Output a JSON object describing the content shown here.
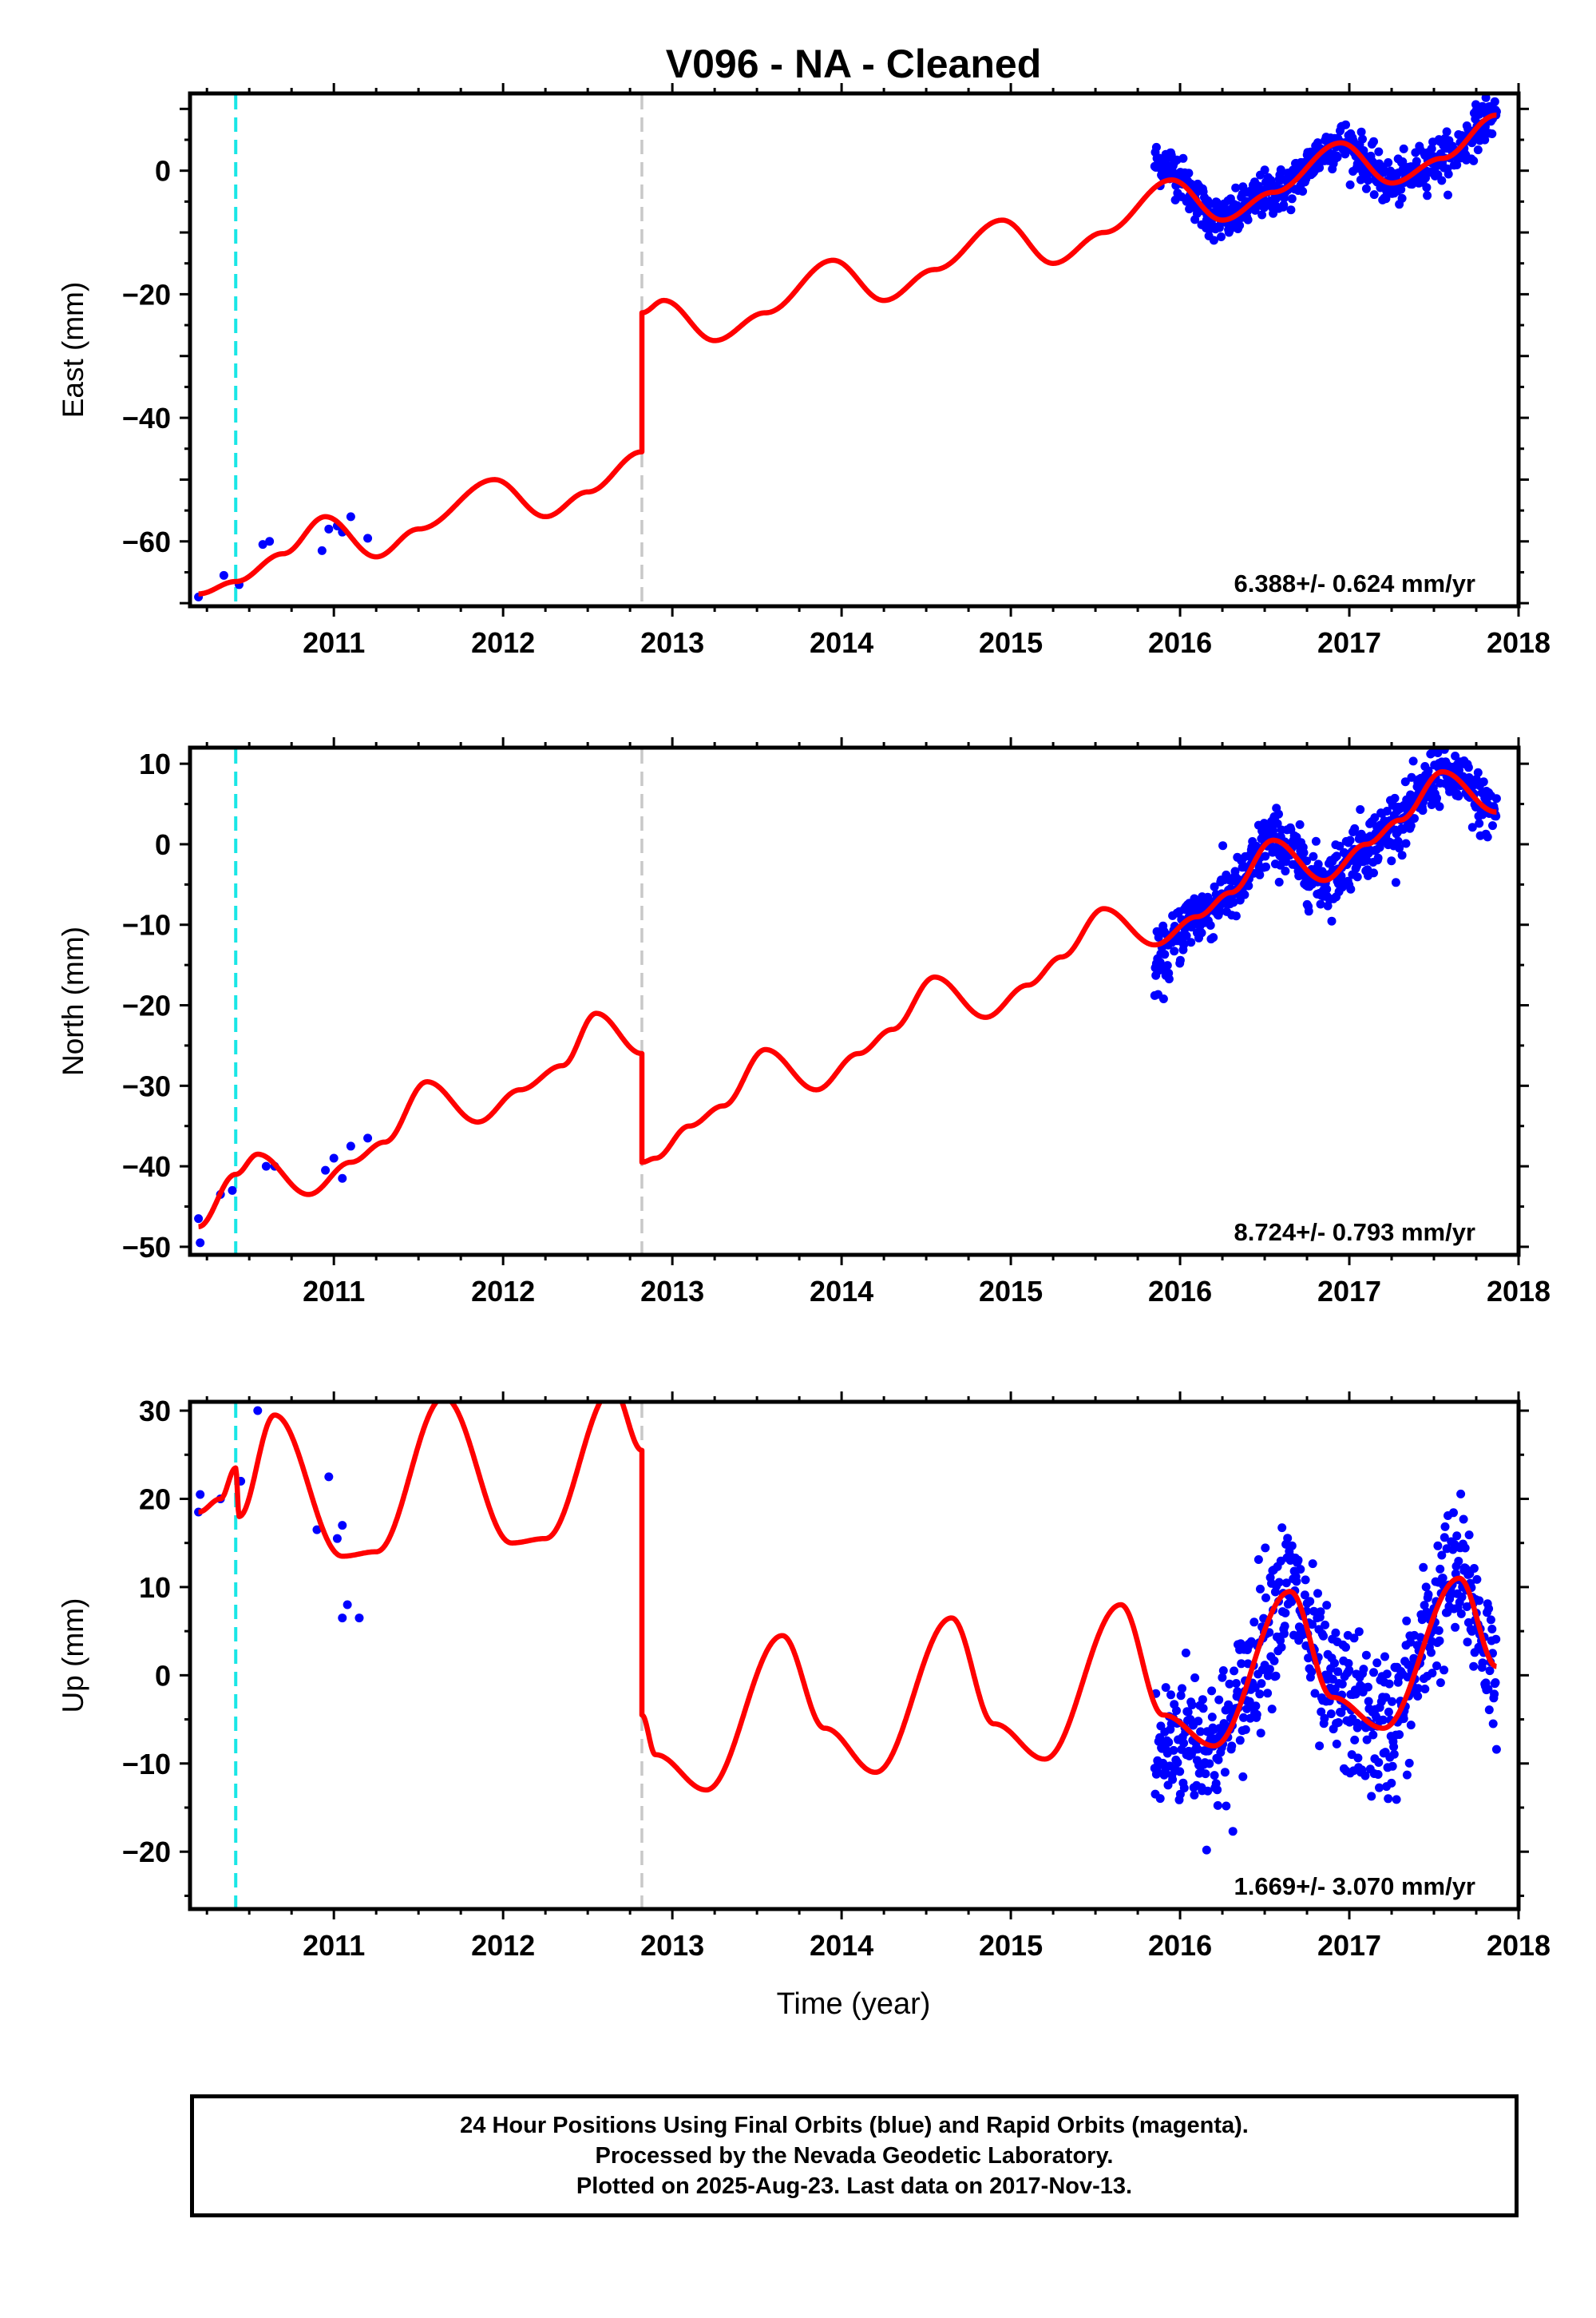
{
  "chart_data": {
    "type": "scatter",
    "title": "V096  - NA - Cleaned",
    "xlabel": "Time (year)",
    "xlim": [
      2010.15,
      2018.0
    ],
    "xticks": [
      2011,
      2012,
      2013,
      2014,
      2015,
      2016,
      2017,
      2018
    ],
    "vlines": [
      {
        "x": 2010.42,
        "style": "dashed",
        "color": "#19e6e6"
      },
      {
        "x": 2012.82,
        "style": "dashed",
        "color": "#c8c8c8"
      }
    ],
    "colors": {
      "data": "#0000ff",
      "model": "#ff0000"
    },
    "panels": [
      {
        "id": "east",
        "ylabel": "East (mm)",
        "ylim": [
          -70.5,
          12.5
        ],
        "yticks": [
          0,
          -20,
          -40,
          -60
        ],
        "rate_label": "6.388+/- 0.624 mm/yr",
        "model": {
          "pre_step_knots": [
            [
              2010.2,
              -68.5
            ],
            [
              2010.42,
              -66.5
            ],
            [
              2010.7,
              -62.0
            ],
            [
              2010.95,
              -56.0
            ],
            [
              2011.25,
              -62.5
            ],
            [
              2011.5,
              -58.0
            ],
            [
              2011.95,
              -50.0
            ],
            [
              2012.25,
              -56.0
            ],
            [
              2012.5,
              -52.0
            ],
            [
              2012.82,
              -45.5
            ]
          ],
          "post_step_knots": [
            [
              2012.82,
              -23.0
            ],
            [
              2012.95,
              -21.0
            ],
            [
              2013.25,
              -27.5
            ],
            [
              2013.55,
              -23.0
            ],
            [
              2013.95,
              -14.5
            ],
            [
              2014.25,
              -21.0
            ],
            [
              2014.55,
              -16.0
            ],
            [
              2014.95,
              -8.0
            ],
            [
              2015.25,
              -15.0
            ],
            [
              2015.55,
              -10.0
            ],
            [
              2015.95,
              -1.5
            ],
            [
              2016.25,
              -8.0
            ],
            [
              2016.55,
              -3.5
            ],
            [
              2016.95,
              4.5
            ],
            [
              2017.25,
              -2.0
            ],
            [
              2017.55,
              2.0
            ],
            [
              2017.87,
              9.0
            ]
          ]
        },
        "data_sparse": [
          [
            2010.2,
            -69.0
          ],
          [
            2010.35,
            -65.5
          ],
          [
            2010.44,
            -67.0
          ],
          [
            2010.58,
            -60.5
          ],
          [
            2010.62,
            -60.0
          ],
          [
            2010.93,
            -61.5
          ],
          [
            2010.97,
            -58.0
          ],
          [
            2011.02,
            -57.5
          ],
          [
            2011.05,
            -58.5
          ],
          [
            2011.1,
            -56.0
          ],
          [
            2011.2,
            -59.5
          ]
        ],
        "data_dense": {
          "x_start": 2015.85,
          "x_end": 2017.87,
          "scatter_mm": 1.8,
          "early_offset": {
            "until": 2016.05,
            "mm": 4.0
          }
        }
      },
      {
        "id": "north",
        "ylabel": "North (mm)",
        "ylim": [
          -51.0,
          12.0
        ],
        "yticks": [
          10,
          0,
          -10,
          -20,
          -30,
          -40,
          -50
        ],
        "rate_label": "8.724+/- 0.793 mm/yr",
        "model": {
          "pre_step_knots": [
            [
              2010.2,
              -47.5
            ],
            [
              2010.42,
              -41.0
            ],
            [
              2010.55,
              -38.5
            ],
            [
              2010.85,
              -43.5
            ],
            [
              2011.1,
              -39.5
            ],
            [
              2011.3,
              -37.0
            ],
            [
              2011.55,
              -29.5
            ],
            [
              2011.85,
              -34.5
            ],
            [
              2012.1,
              -30.5
            ],
            [
              2012.35,
              -27.5
            ],
            [
              2012.55,
              -21.0
            ],
            [
              2012.82,
              -26.0
            ]
          ],
          "post_step_knots": [
            [
              2012.82,
              -39.5
            ],
            [
              2012.9,
              -39.0
            ],
            [
              2013.1,
              -35.0
            ],
            [
              2013.3,
              -32.5
            ],
            [
              2013.55,
              -25.5
            ],
            [
              2013.85,
              -30.5
            ],
            [
              2014.1,
              -26.0
            ],
            [
              2014.3,
              -23.0
            ],
            [
              2014.55,
              -16.5
            ],
            [
              2014.85,
              -21.5
            ],
            [
              2015.1,
              -17.5
            ],
            [
              2015.3,
              -14.0
            ],
            [
              2015.55,
              -8.0
            ],
            [
              2015.85,
              -12.5
            ],
            [
              2016.1,
              -9.0
            ],
            [
              2016.3,
              -6.0
            ],
            [
              2016.55,
              0.5
            ],
            [
              2016.85,
              -4.5
            ],
            [
              2017.1,
              0.0
            ],
            [
              2017.3,
              3.0
            ],
            [
              2017.55,
              9.0
            ],
            [
              2017.87,
              4.0
            ]
          ]
        },
        "data_sparse": [
          [
            2010.2,
            -46.5
          ],
          [
            2010.21,
            -49.5
          ],
          [
            2010.33,
            -43.5
          ],
          [
            2010.4,
            -43.0
          ],
          [
            2010.6,
            -40.0
          ],
          [
            2010.65,
            -40.0
          ],
          [
            2010.95,
            -40.5
          ],
          [
            2011.0,
            -39.0
          ],
          [
            2011.05,
            -41.5
          ],
          [
            2011.1,
            -37.5
          ],
          [
            2011.2,
            -36.5
          ]
        ],
        "data_dense": {
          "x_start": 2015.85,
          "x_end": 2017.87,
          "scatter_mm": 1.9,
          "early_offset": {
            "until": 2016.05,
            "mm": -3.0
          }
        }
      },
      {
        "id": "up",
        "ylabel": "Up (mm)",
        "ylim": [
          -26.5,
          31.0
        ],
        "yticks": [
          30,
          20,
          10,
          0,
          -10,
          -20
        ],
        "rate_label": "1.669+/- 3.070 mm/yr",
        "model": {
          "pre_step_knots": [
            [
              2010.2,
              18.5
            ],
            [
              2010.33,
              20.0
            ],
            [
              2010.42,
              23.5
            ],
            [
              2010.44,
              18.0
            ],
            [
              2010.65,
              29.5
            ],
            [
              2011.05,
              13.5
            ],
            [
              2011.25,
              14.0
            ],
            [
              2011.65,
              31.5
            ],
            [
              2012.05,
              15.0
            ],
            [
              2012.25,
              15.5
            ],
            [
              2012.65,
              32.5
            ],
            [
              2012.82,
              25.5
            ]
          ],
          "post_step_knots": [
            [
              2012.82,
              -4.5
            ],
            [
              2012.9,
              -9.0
            ],
            [
              2013.2,
              -13.0
            ],
            [
              2013.65,
              4.5
            ],
            [
              2013.9,
              -6.0
            ],
            [
              2014.2,
              -11.0
            ],
            [
              2014.65,
              6.5
            ],
            [
              2014.9,
              -5.5
            ],
            [
              2015.2,
              -9.5
            ],
            [
              2015.65,
              8.0
            ],
            [
              2015.9,
              -4.5
            ],
            [
              2016.2,
              -8.0
            ],
            [
              2016.65,
              9.5
            ],
            [
              2016.9,
              -2.5
            ],
            [
              2017.2,
              -6.0
            ],
            [
              2017.65,
              11.0
            ],
            [
              2017.87,
              1.0
            ]
          ]
        },
        "data_sparse": [
          [
            2010.2,
            18.5
          ],
          [
            2010.21,
            20.5
          ],
          [
            2010.33,
            20.0
          ],
          [
            2010.45,
            22.0
          ],
          [
            2010.55,
            30.0
          ],
          [
            2010.9,
            16.5
          ],
          [
            2010.97,
            22.5
          ],
          [
            2011.02,
            15.5
          ],
          [
            2011.05,
            17.0
          ],
          [
            2011.05,
            6.5
          ],
          [
            2011.08,
            8.0
          ],
          [
            2011.15,
            6.5
          ]
        ],
        "data_dense": {
          "x_start": 2015.85,
          "x_end": 2017.87,
          "scatter_mm": 4.2,
          "early_offset": {
            "until": 2016.05,
            "mm": -6.0
          }
        }
      }
    ]
  },
  "footer": {
    "line1": "24 Hour Positions Using Final Orbits (blue) and Rapid Orbits (magenta).",
    "line2": "Processed by the Nevada Geodetic Laboratory.",
    "line3": "Plotted on 2025-Aug-23. Last data on 2017-Nov-13."
  }
}
